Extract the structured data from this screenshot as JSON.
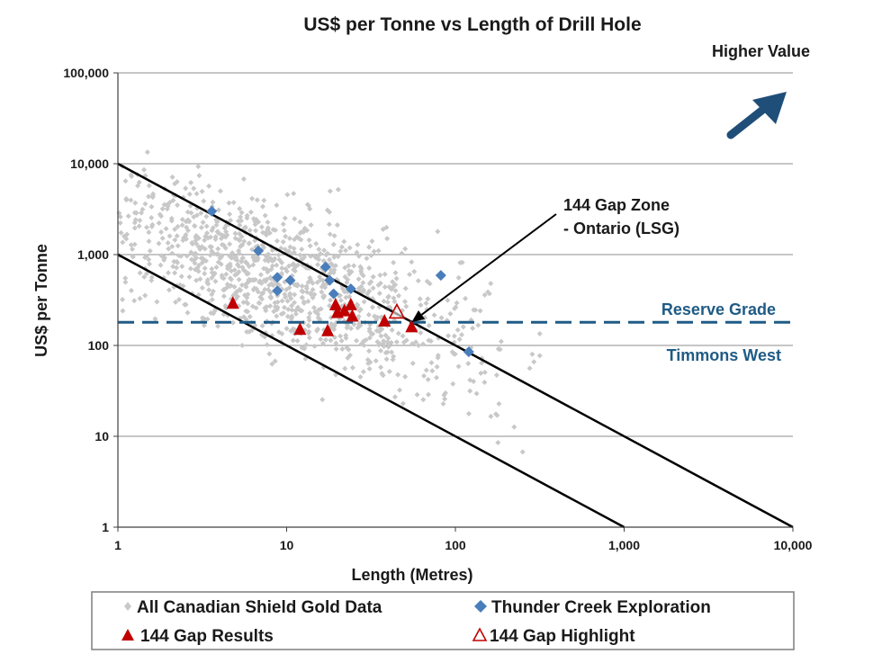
{
  "chart_data": {
    "type": "scatter",
    "title": "US$ per Tonne vs Length of Drill Hole",
    "xlabel": "Length (Metres)",
    "ylabel": "US$ per Tonne",
    "xscale": "log",
    "yscale": "log",
    "xlim": [
      1,
      10000
    ],
    "ylim": [
      1,
      100000
    ],
    "x_ticks": [
      1,
      10,
      100,
      1000,
      10000
    ],
    "x_tick_labels": [
      "1",
      "10",
      "100",
      "1,000",
      "10,000"
    ],
    "y_ticks": [
      1,
      10,
      100,
      1000,
      10000,
      100000
    ],
    "y_tick_labels": [
      "1",
      "10",
      "100",
      "1,000",
      "10,000",
      "100,000"
    ],
    "grid": "horizontal",
    "legend_position": "bottom",
    "series": [
      {
        "name": "All Canadian Shield Gold Data",
        "marker": "diamond-small",
        "color": "#c8c8c8",
        "generated": true,
        "point_count": 1200,
        "x_range": [
          1,
          320
        ],
        "trend": "value decreases with length, centred near 100/length^0.55 x 13"
      },
      {
        "name": "Thunder Creek Exploration",
        "marker": "diamond",
        "color": "#4a7ebb",
        "points": [
          [
            3.6,
            3000
          ],
          [
            6.8,
            1100
          ],
          [
            8.8,
            560
          ],
          [
            8.8,
            400
          ],
          [
            10.5,
            520
          ],
          [
            17,
            730
          ],
          [
            18,
            520
          ],
          [
            19,
            370
          ],
          [
            24,
            420
          ],
          [
            82,
            590
          ],
          [
            120,
            85
          ]
        ]
      },
      {
        "name": "144 Gap Results",
        "marker": "triangle",
        "color": "#c00000",
        "points": [
          [
            4.8,
            290
          ],
          [
            12,
            150
          ],
          [
            17.5,
            145
          ],
          [
            19.5,
            280
          ],
          [
            20,
            230
          ],
          [
            22,
            240
          ],
          [
            24,
            280
          ],
          [
            24.5,
            210
          ],
          [
            38,
            185
          ],
          [
            55,
            160
          ]
        ]
      },
      {
        "name": "144 Gap Highlight",
        "marker": "triangle-open",
        "color": "#c00000",
        "points": [
          [
            45,
            230
          ]
        ]
      }
    ],
    "reference_lines": [
      {
        "name": "upper-diagonal",
        "from": [
          1,
          10000
        ],
        "to": [
          10000,
          1
        ],
        "color": "#000000"
      },
      {
        "name": "lower-diagonal",
        "from": [
          1,
          1000
        ],
        "to": [
          1000,
          1
        ],
        "color": "#000000"
      },
      {
        "name": "reserve-grade",
        "y": 180,
        "style": "dashed",
        "color": "#1f5b85"
      }
    ],
    "annotations": {
      "higher_value": "Higher Value",
      "zone_line1": "144 Gap  Zone",
      "zone_line2": "- Ontario (LSG)",
      "zone_arrow_target": [
        55,
        180
      ],
      "reserve_grade": "Reserve Grade",
      "timmons_west": "Timmons West"
    },
    "colors": {
      "gray": "#c8c8c8",
      "blue": "#4a7ebb",
      "red": "#c00000",
      "navy": "#1f5b85",
      "arrow": "#1f4e79"
    }
  }
}
